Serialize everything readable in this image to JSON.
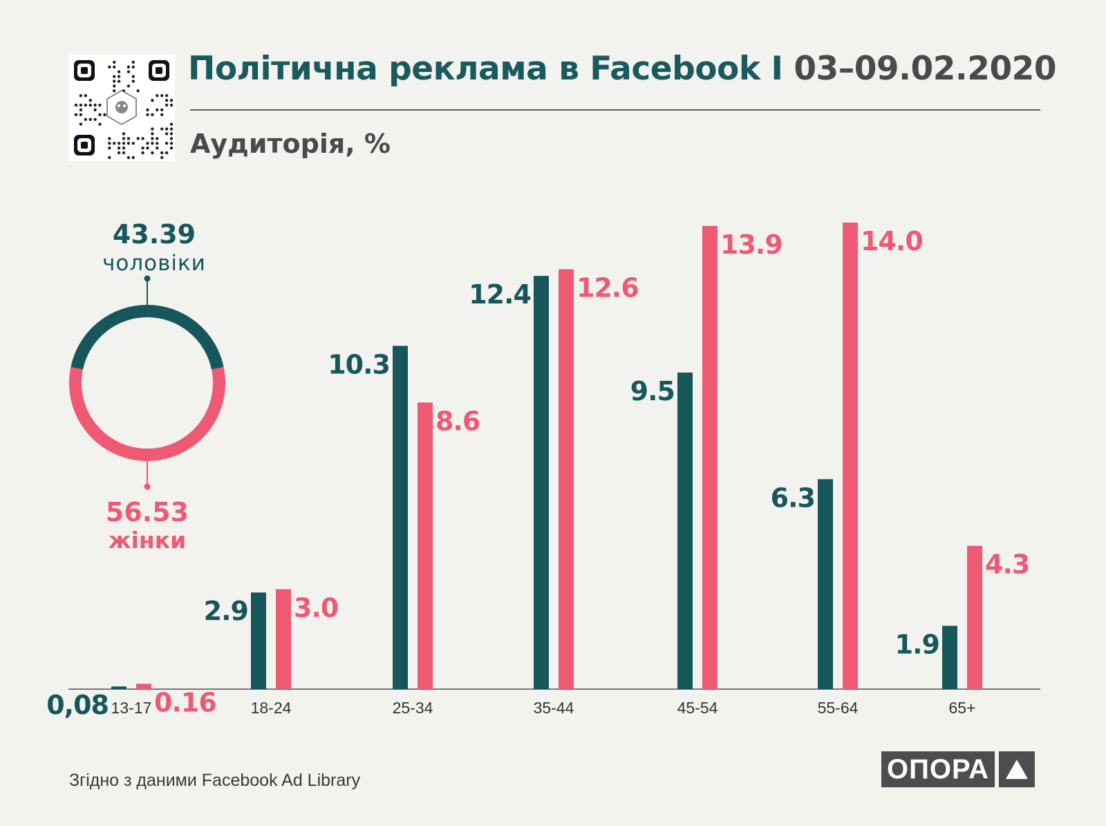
{
  "header": {
    "title_main": "Політична реклама в Facebook I",
    "title_dates": "03–09.02.2020",
    "subtitle": "Аудиторія, %"
  },
  "footer": {
    "source": "Згідно з даними  Facebook Ad Library",
    "logo_text": "ОПОРА"
  },
  "colors": {
    "men": "#17575b",
    "women": "#ee5a74",
    "text": "#4a4a4a",
    "background": "#f2f2ef"
  },
  "chart_data": [
    {
      "type": "pie",
      "style": "donut",
      "series": [
        {
          "name": "чоловіки",
          "value": 43.39,
          "value_label": "43.39",
          "color": "#17575b"
        },
        {
          "name": "жінки",
          "value": 56.53,
          "value_label": "56.53",
          "color": "#ee5a74"
        }
      ]
    },
    {
      "type": "bar",
      "categories": [
        "13-17",
        "18-24",
        "25-34",
        "35-44",
        "45-54",
        "55-64",
        "65+"
      ],
      "series": [
        {
          "values": [
            0.08,
            2.9,
            10.3,
            12.4,
            9.5,
            6.3,
            1.9
          ],
          "labels": [
            "0,08",
            "2.9",
            "10.3",
            "12.4",
            "9.5",
            "6.3",
            "1.9"
          ],
          "color": "#17575b"
        },
        {
          "values": [
            0.16,
            3.0,
            8.6,
            12.6,
            13.9,
            14.0,
            4.3
          ],
          "labels": [
            "0.16",
            "3.0",
            "8.6",
            "12.6",
            "13.9",
            "14.0",
            "4.3"
          ],
          "color": "#ee5a74"
        }
      ],
      "ylim": [
        0,
        14.0
      ],
      "grid": false,
      "data_labels": true
    }
  ]
}
